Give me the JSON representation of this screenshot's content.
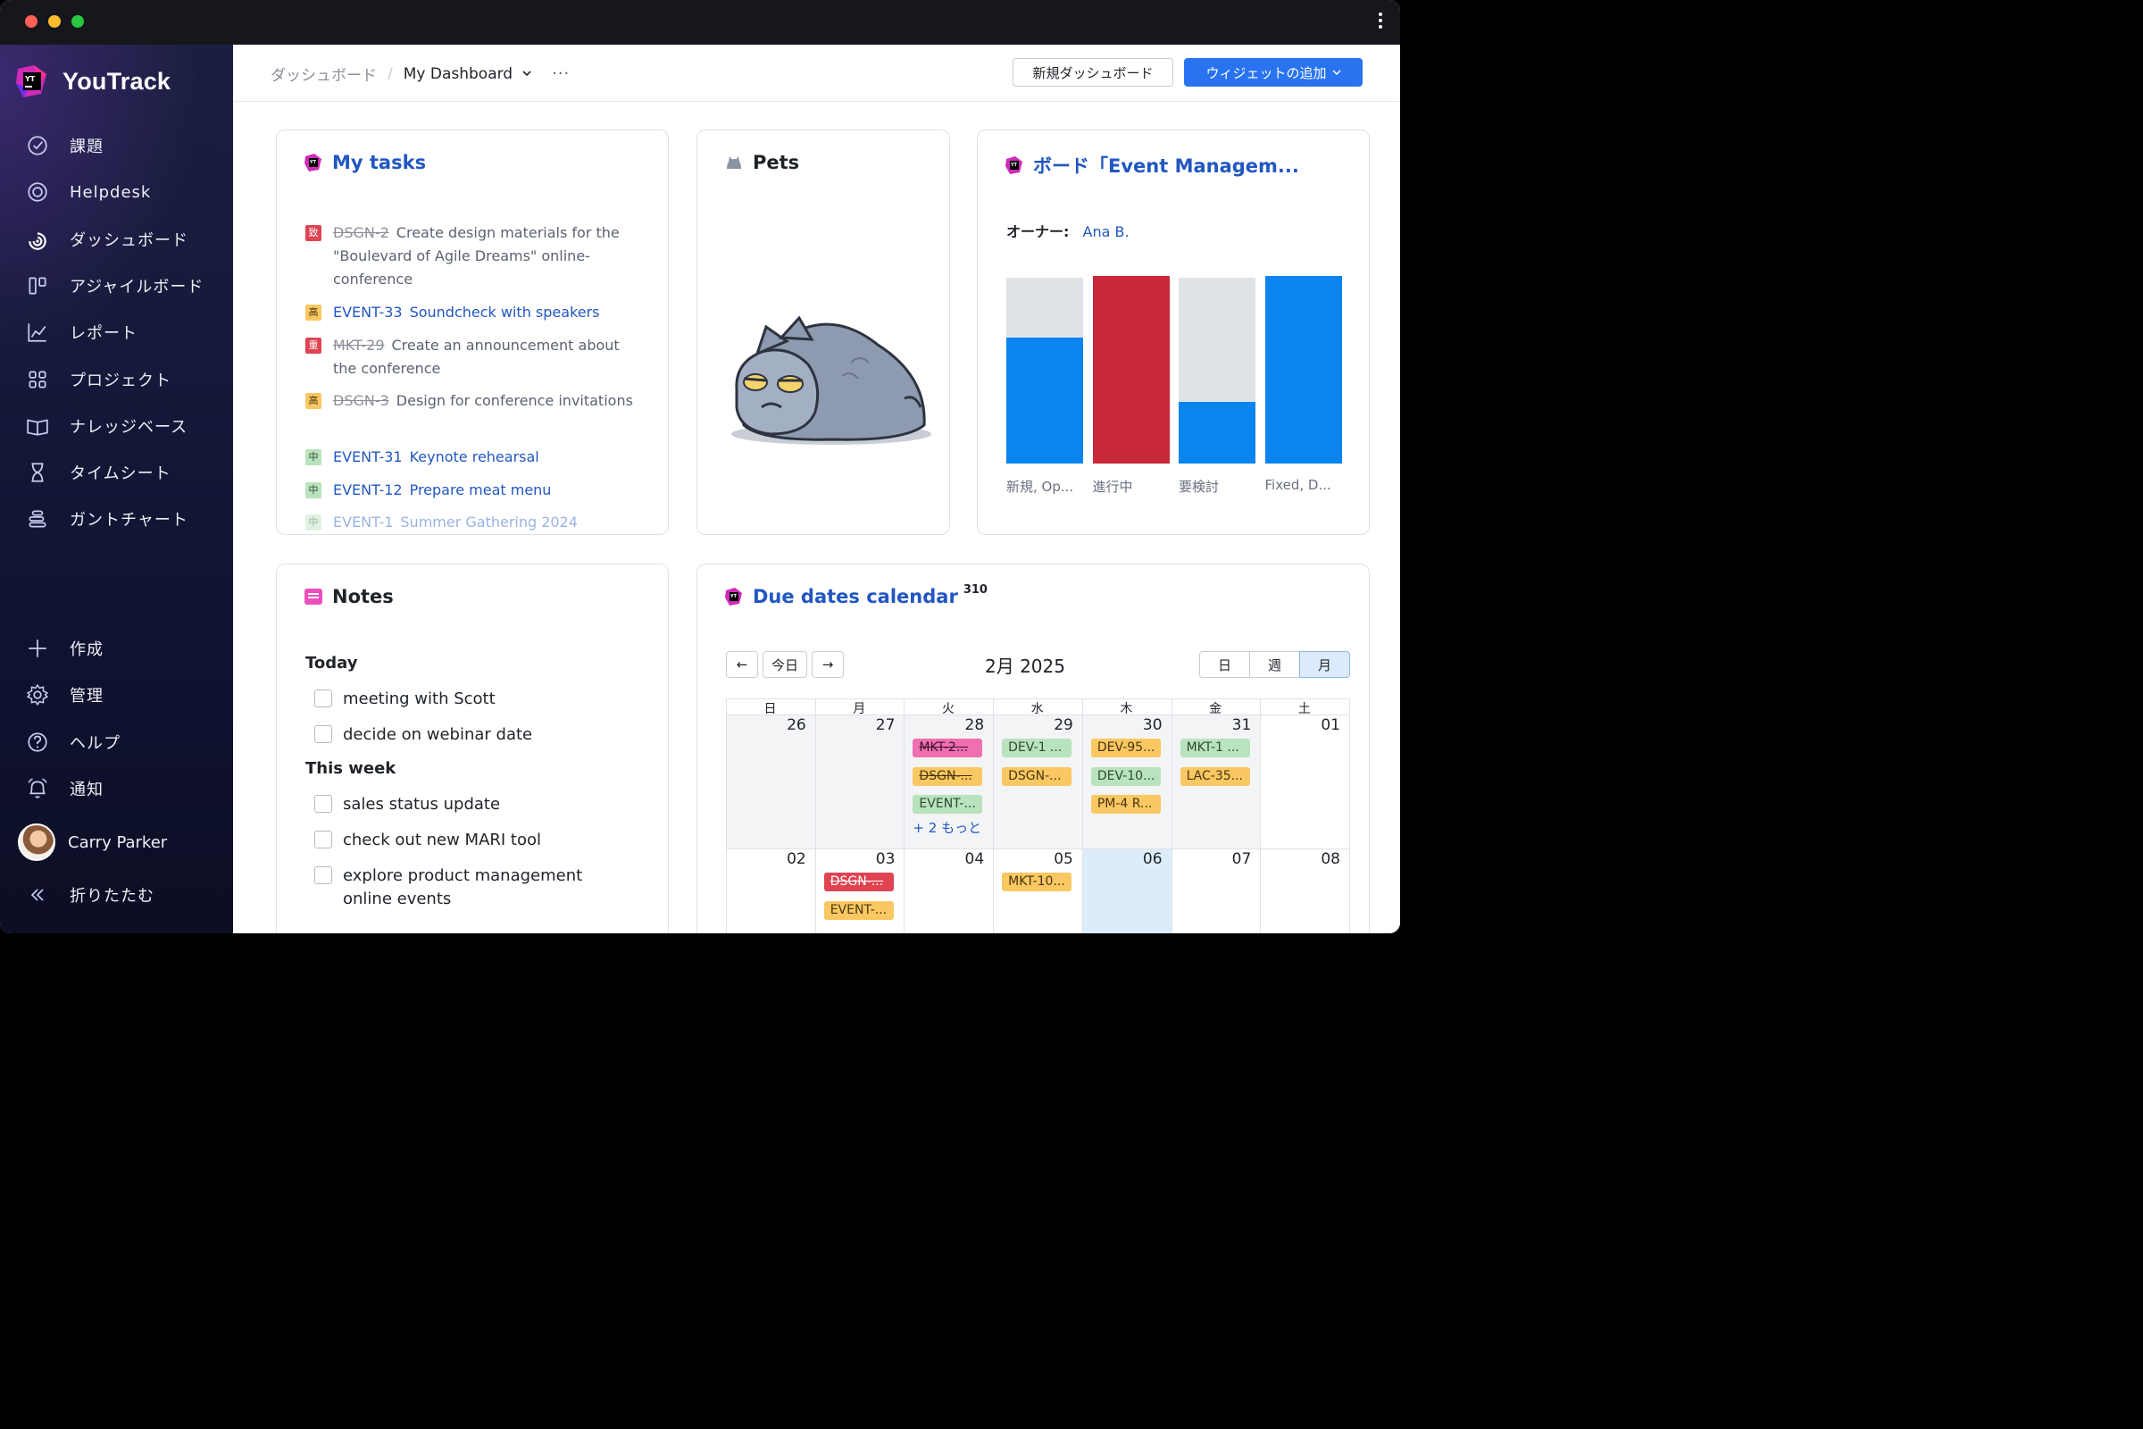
{
  "app": {
    "name": "YouTrack"
  },
  "sidebar": {
    "items": [
      {
        "label": "課題",
        "icon": "check-circle-icon"
      },
      {
        "label": "Helpdesk",
        "icon": "lifebuoy-icon"
      },
      {
        "label": "ダッシュボード",
        "icon": "dashboard-icon"
      },
      {
        "label": "アジャイルボード",
        "icon": "board-icon"
      },
      {
        "label": "レポート",
        "icon": "chart-icon"
      },
      {
        "label": "プロジェクト",
        "icon": "grid-icon"
      },
      {
        "label": "ナレッジベース",
        "icon": "book-icon"
      },
      {
        "label": "タイムシート",
        "icon": "hourglass-icon"
      },
      {
        "label": "ガントチャート",
        "icon": "gantt-icon"
      }
    ],
    "bottom": [
      {
        "label": "作成",
        "icon": "plus-icon"
      },
      {
        "label": "管理",
        "icon": "gear-icon"
      },
      {
        "label": "ヘルプ",
        "icon": "help-icon"
      },
      {
        "label": "通知",
        "icon": "bell-icon"
      }
    ],
    "user": "Carry Parker",
    "collapse": "折りたたむ"
  },
  "header": {
    "breadcrumb_root": "ダッシュボード",
    "breadcrumb_current": "My Dashboard",
    "more": "···",
    "new_dashboard": "新規ダッシュボード",
    "add_widget": "ウィジェットの追加"
  },
  "tasks": {
    "title": "My tasks",
    "items": [
      {
        "pri": "致",
        "color": "#e04452",
        "id": "DSGN-2",
        "done": true,
        "summary": "Create design materials for the \"Boulevard of Agile Dreams\" online-conference"
      },
      {
        "pri": "高",
        "color": "#f9c862",
        "id": "EVENT-33",
        "done": false,
        "summary": "Soundcheck with speakers"
      },
      {
        "pri": "重",
        "color": "#e04452",
        "id": "MKT-29",
        "done": true,
        "summary": "Create an announcement about the conference"
      },
      {
        "pri": "高",
        "color": "#f9c862",
        "id": "DSGN-3",
        "done": true,
        "summary": "Design for conference invitations"
      },
      {
        "pri": "中",
        "color": "#b9e3bd",
        "id": "EVENT-31",
        "done": false,
        "summary": "Keynote rehearsal"
      },
      {
        "pri": "中",
        "color": "#b9e3bd",
        "id": "EVENT-12",
        "done": false,
        "summary": "Prepare meat menu"
      },
      {
        "pri": "中",
        "color": "#b9e3bd",
        "id": "EVENT-1",
        "done": false,
        "summary": "Summer Gathering 2024"
      }
    ]
  },
  "pets": {
    "title": "Pets"
  },
  "board": {
    "title": "ボード「Event Managem...",
    "owner_label": "オーナー:",
    "owner": "Ana B.",
    "chart_data": {
      "type": "bar",
      "categories": [
        "新規, Op...",
        "進行中",
        "要検討",
        "Fixed, D..."
      ],
      "values": [
        0.67,
        1.0,
        0.33,
        1.0
      ],
      "colors": [
        "#0a84ee",
        "#c8283a",
        "#0a84ee",
        "#0a84ee"
      ]
    }
  },
  "notes": {
    "title": "Notes",
    "sections": [
      {
        "heading": "Today",
        "items": [
          "meeting with Scott",
          "decide on webinar date"
        ]
      },
      {
        "heading": "This week",
        "items": [
          "sales status update",
          "check out new MARI tool",
          "explore product management online events"
        ]
      }
    ]
  },
  "calendar": {
    "title": "Due dates calendar",
    "count": "310",
    "prev": "←",
    "today": "今日",
    "next": "→",
    "month": "2月 2025",
    "views": [
      "日",
      "週",
      "月"
    ],
    "active_view": "月",
    "weekdays": [
      "日",
      "月",
      "火",
      "水",
      "木",
      "金",
      "土"
    ],
    "week1": [
      "26",
      "27",
      "28",
      "29",
      "30",
      "31",
      "01"
    ],
    "week2": [
      "02",
      "03",
      "04",
      "05",
      "06",
      "07",
      "08"
    ],
    "events_w1": [
      {
        "col": 2,
        "row": 0,
        "label": "MKT-2...",
        "style": "pink"
      },
      {
        "col": 2,
        "row": 1,
        "label": "DSGN-...",
        "style": "yellow strike"
      },
      {
        "col": 2,
        "row": 2,
        "label": "EVENT-...",
        "style": "green"
      },
      {
        "col": 3,
        "row": 0,
        "label": "DEV-1 ...",
        "style": "green"
      },
      {
        "col": 3,
        "row": 1,
        "label": "DSGN-...",
        "style": "yellow"
      },
      {
        "col": 4,
        "row": 0,
        "label": "DEV-95...",
        "style": "yellow"
      },
      {
        "col": 4,
        "row": 1,
        "label": "DEV-10...",
        "style": "green"
      },
      {
        "col": 4,
        "row": 2,
        "label": "PM-4 R...",
        "style": "yellow"
      },
      {
        "col": 5,
        "row": 0,
        "label": "MKT-1 ...",
        "style": "green"
      },
      {
        "col": 5,
        "row": 1,
        "label": "LAC-35...",
        "style": "yellow"
      }
    ],
    "more_w1": "+ 2 もっと",
    "events_w2": [
      {
        "col": 1,
        "row": 0,
        "label": "DSGN-...",
        "style": "red"
      },
      {
        "col": 1,
        "row": 1,
        "label": "EVENT-...",
        "style": "yellow"
      },
      {
        "col": 3,
        "row": 0,
        "label": "MKT-10...",
        "style": "yellow"
      }
    ]
  }
}
